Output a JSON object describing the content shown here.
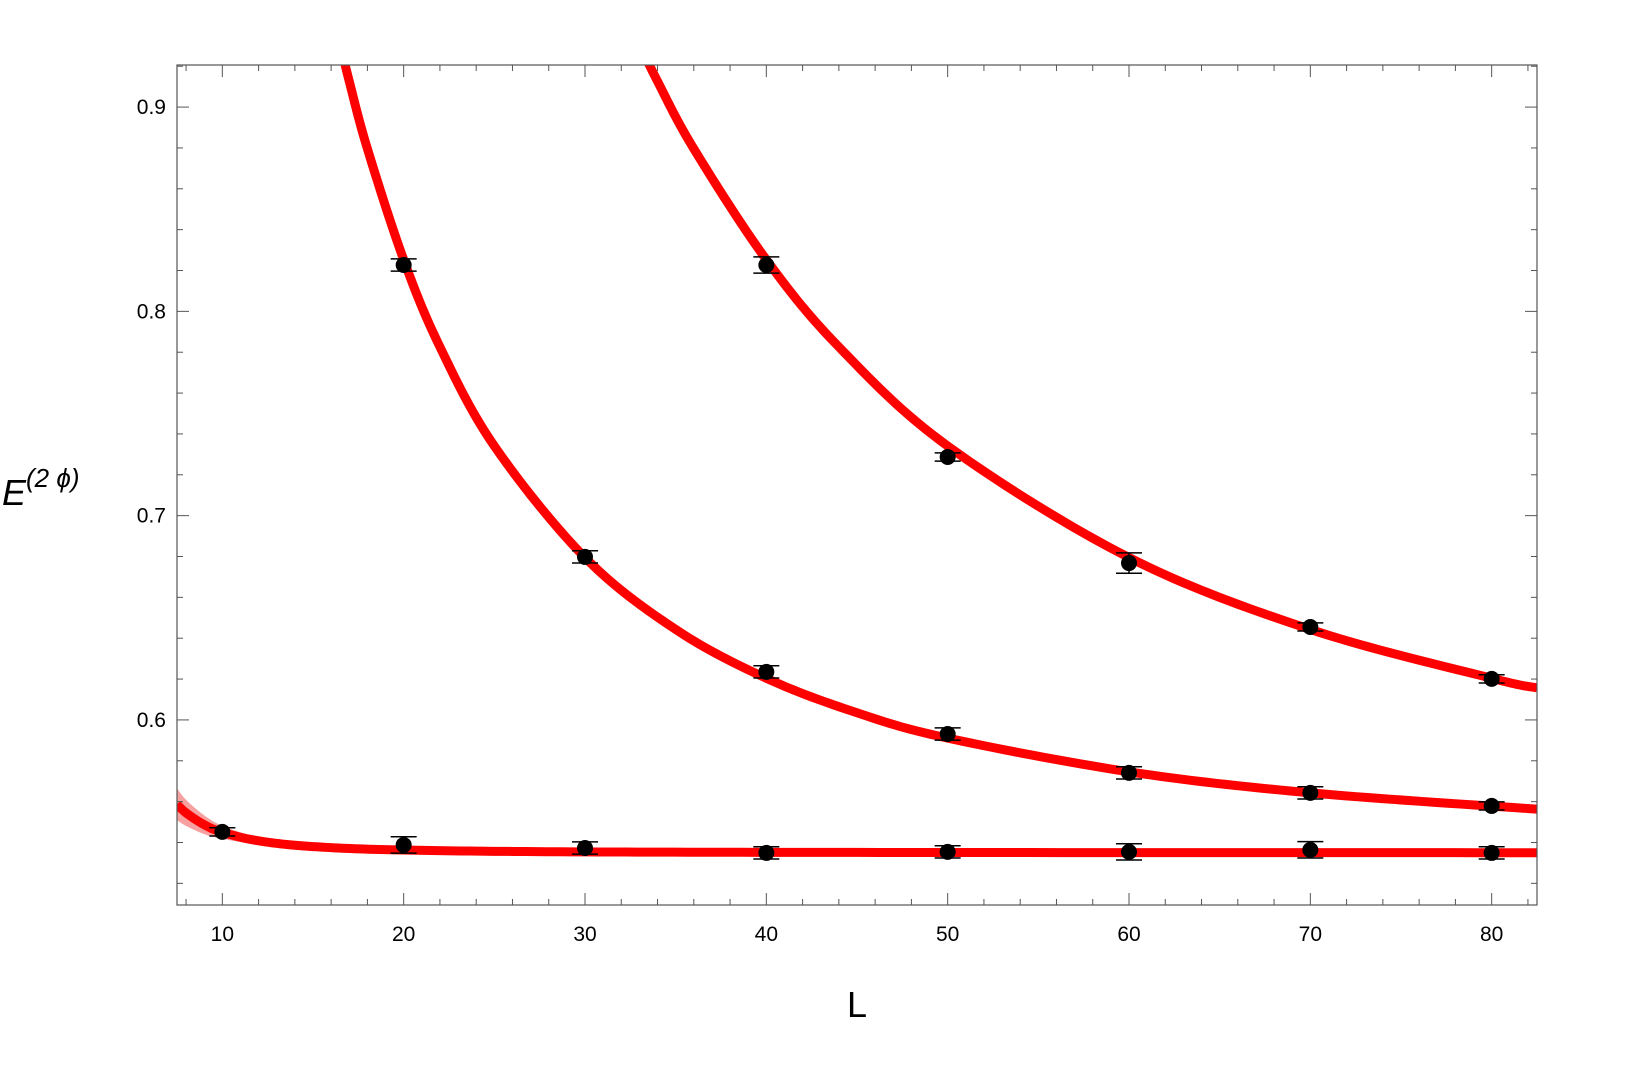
{
  "chart_data": {
    "type": "scatter",
    "xlabel": "L",
    "ylabel": {
      "base": "E",
      "superscript": "(2 ϕ)"
    },
    "xlim": [
      7.5,
      82.5
    ],
    "ylim": [
      0.5094,
      0.9206
    ],
    "x_ticks": [
      10,
      20,
      30,
      40,
      50,
      60,
      70,
      80
    ],
    "x_tick_labels": [
      "10",
      "20",
      "30",
      "40",
      "50",
      "60",
      "70",
      "80"
    ],
    "y_ticks": [
      0.6,
      0.7,
      0.8,
      0.9
    ],
    "y_tick_labels": [
      "0.6",
      "0.7",
      "0.8",
      "0.9"
    ],
    "grid": false,
    "legend": "none",
    "colors": {
      "fit": "#ff0000",
      "band": "#f7a0a0",
      "points": "#000000"
    },
    "series": [
      {
        "x": [
          10,
          20,
          30,
          40,
          50,
          60,
          70,
          80
        ],
        "y": [
          0.5452,
          0.5388,
          0.5373,
          0.5349,
          0.5354,
          0.5354,
          0.5364,
          0.5349
        ],
        "err": [
          0.002,
          0.004,
          0.003,
          0.003,
          0.003,
          0.004,
          0.004,
          0.003
        ]
      },
      {
        "x": [
          20,
          30,
          40,
          50,
          60,
          70,
          80
        ],
        "y": [
          0.8227,
          0.6798,
          0.6235,
          0.5931,
          0.5741,
          0.5643,
          0.5579
        ],
        "err": [
          0.003,
          0.003,
          0.003,
          0.003,
          0.003,
          0.003,
          0.002
        ]
      },
      {
        "x": [
          40,
          50,
          60,
          70,
          80
        ],
        "y": [
          0.8227,
          0.7287,
          0.6768,
          0.6455,
          0.6201
        ],
        "err": [
          0.004,
          0.002,
          0.005,
          0.002,
          0.002
        ]
      }
    ],
    "fit_curves": [
      {
        "x": [
          7.5,
          8,
          9,
          10,
          12,
          15,
          20,
          30,
          50,
          82.5
        ],
        "y": [
          0.5587,
          0.5545,
          0.5487,
          0.545,
          0.5408,
          0.538,
          0.5363,
          0.5354,
          0.5351,
          0.535
        ],
        "band_lower": [
          0.5509,
          0.5481,
          0.5441,
          0.5418,
          0.539,
          0.5371,
          0.536,
          0.5353,
          0.5351,
          0.535
        ],
        "band_upper": [
          0.5665,
          0.5609,
          0.5533,
          0.5482,
          0.5426,
          0.5389,
          0.5366,
          0.5355,
          0.5351,
          0.535
        ]
      },
      {
        "x": [
          16.5,
          17,
          18,
          20,
          22,
          25,
          30,
          35,
          40,
          45,
          50,
          60,
          70,
          82.5
        ],
        "y": [
          0.9308,
          0.9126,
          0.8796,
          0.8253,
          0.7826,
          0.7341,
          0.6795,
          0.6443,
          0.6204,
          0.6035,
          0.5911,
          0.5746,
          0.5643,
          0.5563
        ]
      },
      {
        "x": [
          33,
          34,
          36,
          40,
          44,
          50,
          60,
          70,
          80,
          82.5
        ],
        "y": [
          0.9308,
          0.9126,
          0.8796,
          0.8253,
          0.7826,
          0.7341,
          0.6795,
          0.6443,
          0.6204,
          0.6157
        ]
      }
    ]
  }
}
